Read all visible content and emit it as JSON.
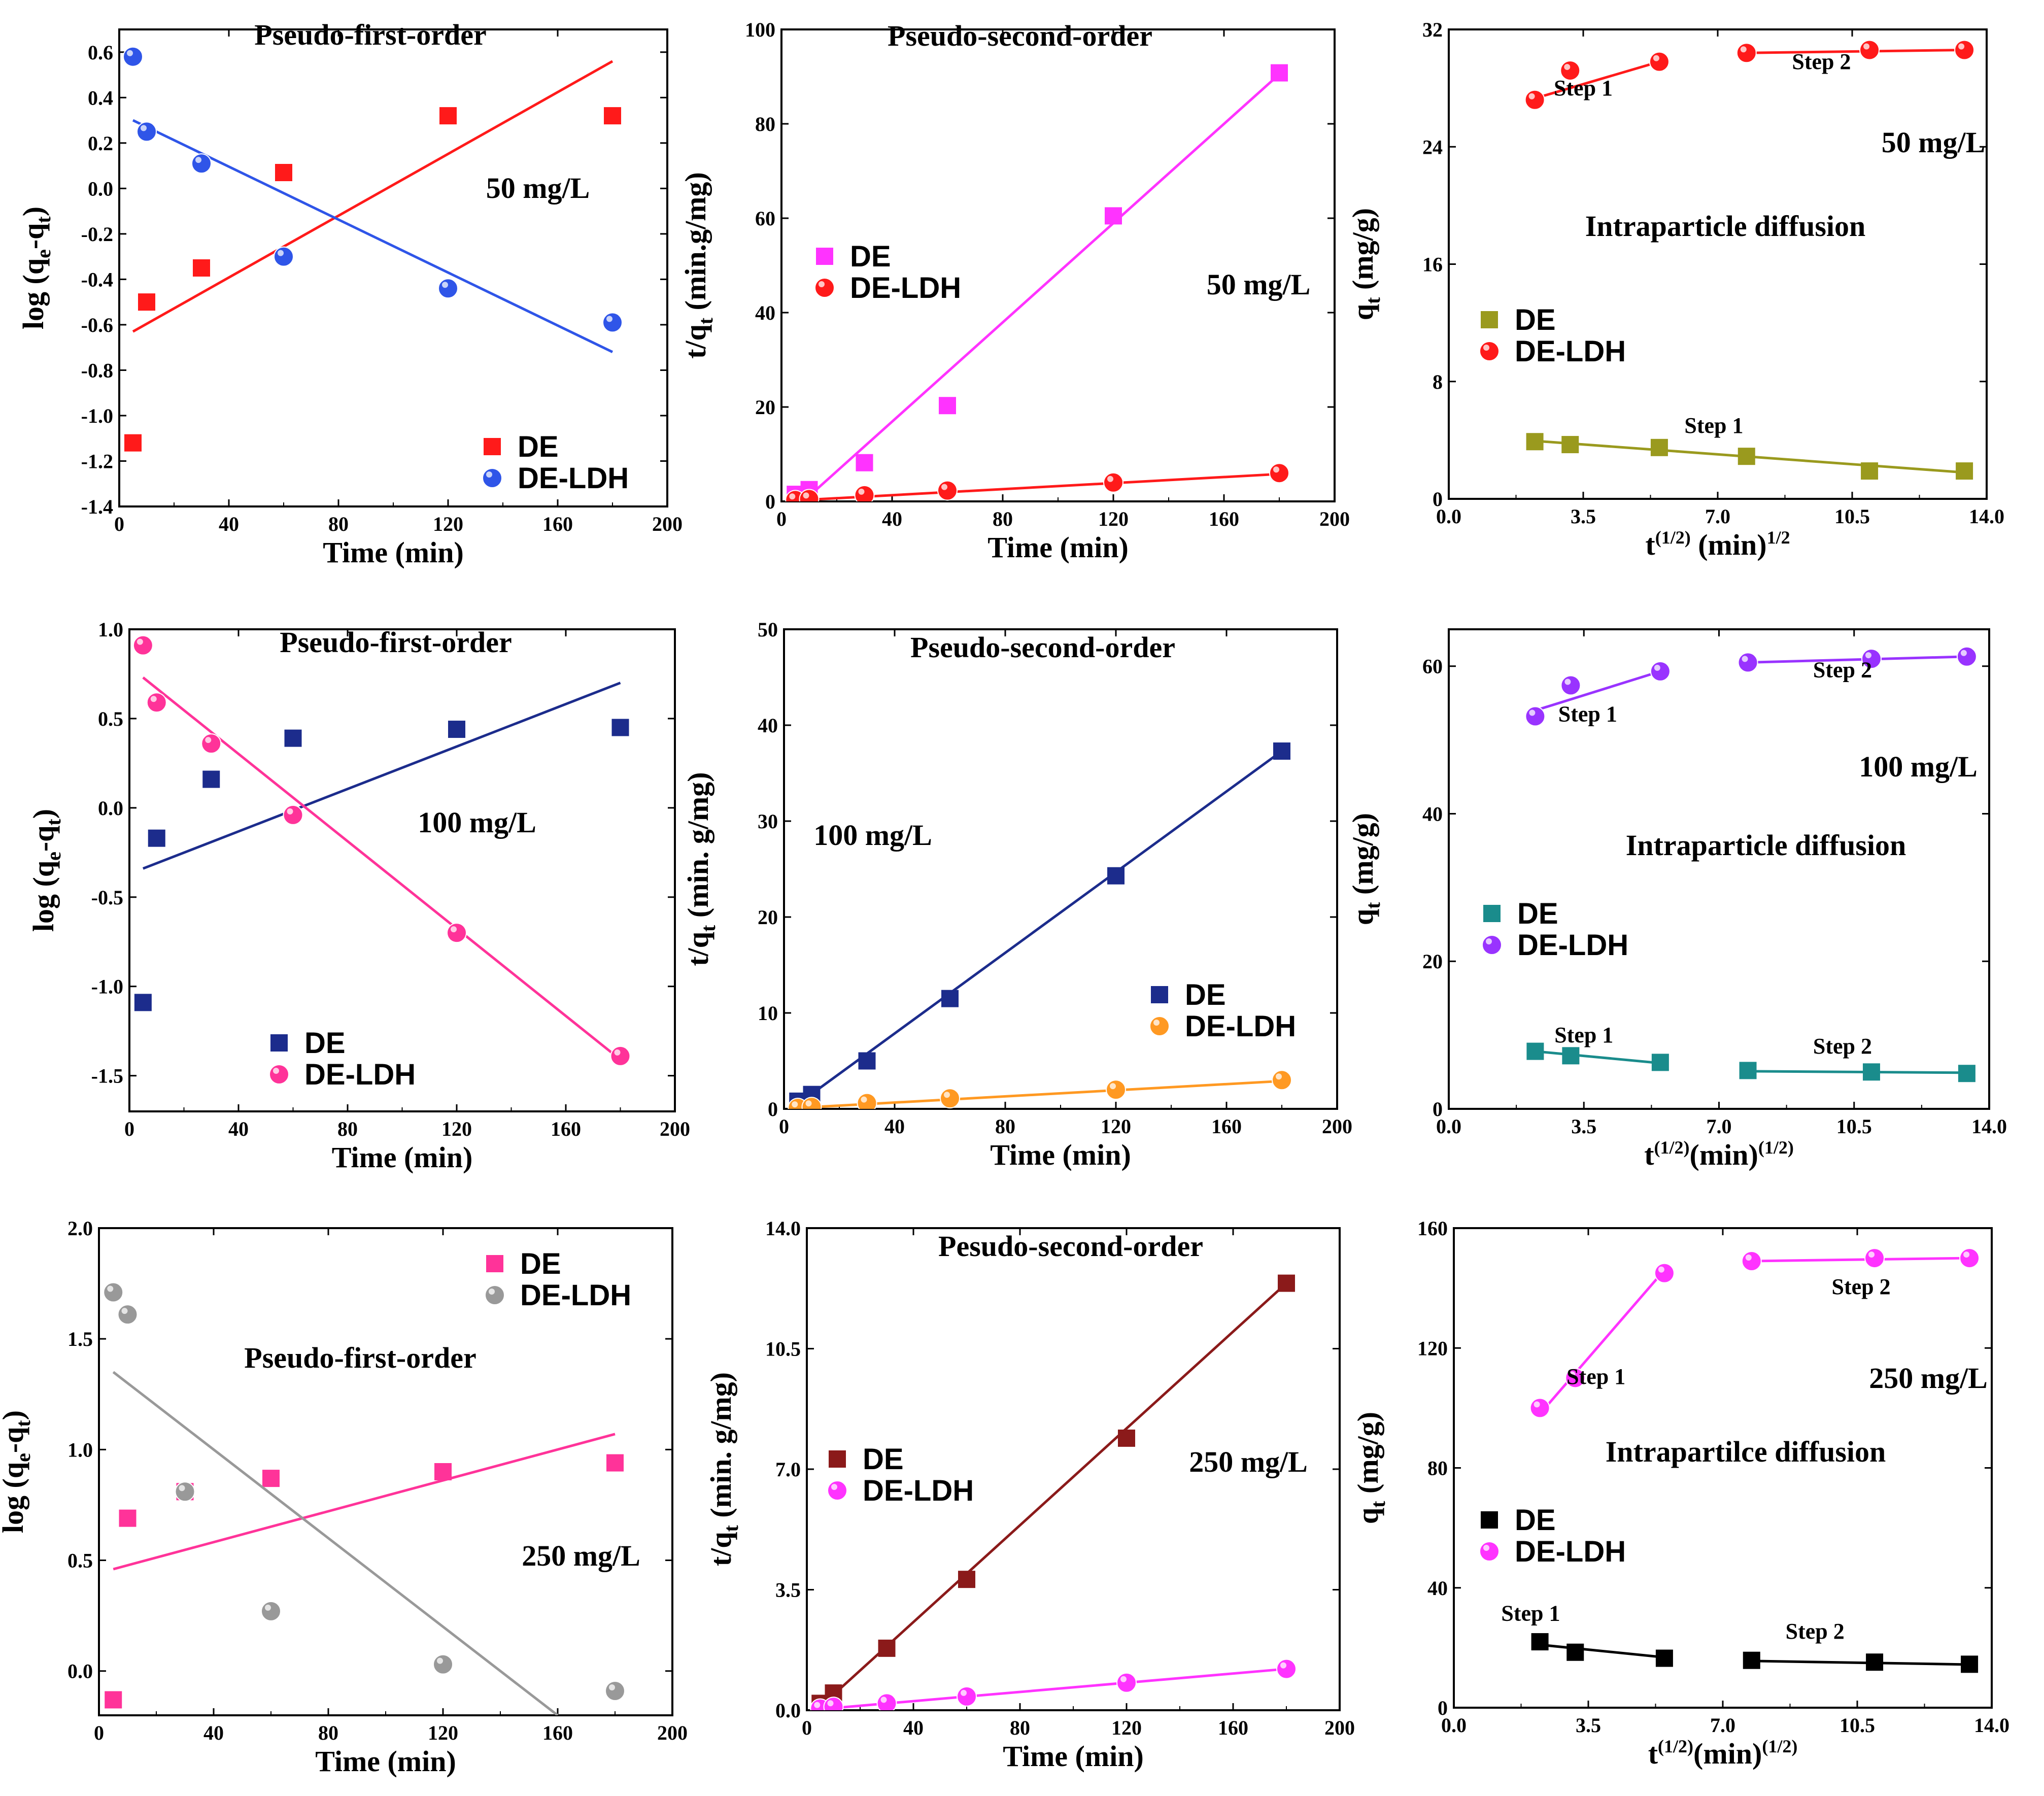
{
  "chart_data": [
    {
      "id": "p1",
      "type": "scatter",
      "title": "Pseudo-first-order",
      "annotation": "50 mg/L",
      "xlabel": "Time (min)",
      "ylabel": "log (q_e-q_t)",
      "xlim": [
        0,
        200
      ],
      "ylim": [
        -1.4,
        0.7
      ],
      "xticks": [
        0,
        40,
        80,
        120,
        160,
        200
      ],
      "xtick_labels": [
        "0",
        "40",
        "80",
        "120",
        "160",
        "200"
      ],
      "yticks": [
        -1.4,
        -1.2,
        -1.0,
        -0.8,
        -0.6,
        -0.4,
        -0.2,
        0.0,
        0.2,
        0.4,
        0.6
      ],
      "ytick_labels": [
        "-1.4",
        "-1.2",
        "-1.0",
        "-0.8",
        "-0.6",
        "-0.4",
        "-0.2",
        "0.0",
        "0.2",
        "0.4",
        "0.6"
      ],
      "series": [
        {
          "name": "DE",
          "marker": "square",
          "color": "#ff1a1a",
          "x": [
            5,
            10,
            30,
            60,
            120,
            180
          ],
          "y": [
            -1.12,
            -0.5,
            -0.35,
            0.07,
            0.32,
            0.32
          ],
          "fit": {
            "x": [
              5,
              180
            ],
            "y": [
              -0.63,
              0.56
            ]
          }
        },
        {
          "name": "DE-LDH",
          "marker": "circle",
          "color": "#2f55e8",
          "x": [
            5,
            10,
            30,
            60,
            120,
            180
          ],
          "y": [
            0.58,
            0.25,
            0.11,
            -0.3,
            -0.44,
            -0.59
          ],
          "fit": {
            "x": [
              5,
              180
            ],
            "y": [
              0.3,
              -0.72
            ]
          }
        }
      ],
      "legend_position": "bottom-right"
    },
    {
      "id": "p2",
      "type": "scatter",
      "title": "Pseudo-second-order",
      "annotation": "50 mg/L",
      "xlabel": "Time (min)",
      "ylabel": "t/q_t (min.g/mg)",
      "xlim": [
        0,
        200
      ],
      "ylim": [
        0,
        100
      ],
      "xticks": [
        0,
        40,
        80,
        120,
        160,
        200
      ],
      "xtick_labels": [
        "0",
        "40",
        "80",
        "120",
        "160",
        "200"
      ],
      "yticks": [
        0,
        20,
        40,
        60,
        80,
        100
      ],
      "ytick_labels": [
        "0",
        "20",
        "40",
        "60",
        "80",
        "100"
      ],
      "series": [
        {
          "name": "DE",
          "marker": "square",
          "color": "#ff33ff",
          "x": [
            5,
            10,
            30,
            60,
            120,
            180
          ],
          "y": [
            1.5,
            2.5,
            8.2,
            20.3,
            60.5,
            90.8
          ],
          "fit": {
            "x": [
              5,
              180
            ],
            "y": [
              -1.5,
              90.5
            ]
          }
        },
        {
          "name": "DE-LDH",
          "marker": "circle",
          "color": "#ff1a1a",
          "x": [
            5,
            10,
            30,
            60,
            120,
            180
          ],
          "y": [
            0.3,
            0.5,
            1.3,
            2.3,
            4,
            6
          ],
          "fit": {
            "x": [
              5,
              180
            ],
            "y": [
              0.2,
              5.8
            ]
          }
        }
      ],
      "legend_position": "middle-left"
    },
    {
      "id": "p3",
      "type": "scatter",
      "title": "Intraparticle diffusion",
      "annotation": "50 mg/L",
      "xlabel": "t^(1/2) (min)^1/2",
      "ylabel": "q_t (mg/g)",
      "xlim": [
        0,
        14
      ],
      "ylim": [
        0,
        32
      ],
      "xticks": [
        0,
        3.5,
        7,
        10.5,
        14
      ],
      "xtick_labels": [
        "0.0",
        "3.5",
        "7.0",
        "10.5",
        "14.0"
      ],
      "yticks": [
        0,
        8,
        16,
        24,
        32
      ],
      "ytick_labels": [
        "0",
        "8",
        "16",
        "24",
        "32"
      ],
      "step_labels": [
        {
          "text": "Step 1",
          "x": 3.5,
          "y": 27.5
        },
        {
          "text": "Step 2",
          "x": 9.7,
          "y": 29.3
        },
        {
          "text": "Step 1",
          "x": 6.9,
          "y": 4.5
        }
      ],
      "series": [
        {
          "name": "DE",
          "marker": "square",
          "color": "#9a9a1e",
          "x": [
            2.24,
            3.16,
            5.48,
            7.75,
            10.95,
            13.42
          ],
          "y": [
            3.9,
            3.7,
            3.5,
            2.9,
            1.9,
            1.9
          ],
          "fit": {
            "x": [
              2.24,
              13.42
            ],
            "y": [
              3.95,
              1.8
            ]
          }
        },
        {
          "name": "DE-LDH",
          "marker": "circle",
          "color": "#ff1a1a",
          "x": [
            2.24,
            3.16,
            5.48,
            7.75,
            10.95,
            13.42
          ],
          "y": [
            27.2,
            29.2,
            29.8,
            30.4,
            30.6,
            30.6
          ],
          "fit_segments": [
            {
              "x": [
                2.24,
                5.48
              ],
              "y": [
                27.3,
                29.8
              ]
            },
            {
              "x": [
                7.75,
                13.42
              ],
              "y": [
                30.4,
                30.6
              ]
            }
          ]
        }
      ],
      "legend_position": "middle-left"
    },
    {
      "id": "p4",
      "type": "scatter",
      "title": "Pseudo-first-order",
      "annotation": "100 mg/L",
      "xlabel": "Time (min)",
      "ylabel": "log (q_e-q_t)",
      "xlim": [
        0,
        200
      ],
      "ylim": [
        -1.7,
        1.0
      ],
      "xticks": [
        0,
        40,
        80,
        120,
        160,
        200
      ],
      "xtick_labels": [
        "0",
        "40",
        "80",
        "120",
        "160",
        "200"
      ],
      "yticks": [
        -1.5,
        -1.0,
        -0.5,
        0.0,
        0.5,
        1.0
      ],
      "ytick_labels": [
        "-1.5",
        "-1.0",
        "-0.5",
        "0.0",
        "0.5",
        "1.0"
      ],
      "series": [
        {
          "name": "DE",
          "marker": "square",
          "color": "#1c2c8c",
          "x": [
            5,
            10,
            30,
            60,
            120,
            180
          ],
          "y": [
            -1.09,
            -0.17,
            0.16,
            0.39,
            0.44,
            0.45
          ],
          "fit": {
            "x": [
              5,
              180
            ],
            "y": [
              -0.34,
              0.7
            ]
          }
        },
        {
          "name": "DE-LDH",
          "marker": "circle",
          "color": "#ff3399",
          "x": [
            5,
            10,
            30,
            60,
            120,
            180
          ],
          "y": [
            0.91,
            0.59,
            0.36,
            -0.04,
            -0.7,
            -1.39
          ],
          "fit": {
            "x": [
              5,
              180
            ],
            "y": [
              0.73,
              -1.41
            ]
          }
        }
      ],
      "legend_position": "bottom-left"
    },
    {
      "id": "p5",
      "type": "scatter",
      "title": "Pseudo-second-order",
      "annotation": "100 mg/L",
      "xlabel": "Time (min)",
      "ylabel": "t/q_t (min. g/mg)",
      "xlim": [
        0,
        200
      ],
      "ylim": [
        0,
        50
      ],
      "xticks": [
        0,
        40,
        80,
        120,
        160,
        200
      ],
      "xtick_labels": [
        "0",
        "40",
        "80",
        "120",
        "160",
        "200"
      ],
      "yticks": [
        0,
        10,
        20,
        30,
        40,
        50
      ],
      "ytick_labels": [
        "0",
        "10",
        "20",
        "30",
        "40",
        "50"
      ],
      "series": [
        {
          "name": "DE",
          "marker": "square",
          "color": "#1c2c8c",
          "x": [
            5,
            10,
            30,
            60,
            120,
            180
          ],
          "y": [
            0.8,
            1.5,
            5,
            11.5,
            24.3,
            37.3
          ],
          "fit": {
            "x": [
              5,
              180
            ],
            "y": [
              0.5,
              37.3
            ]
          }
        },
        {
          "name": "DE-LDH",
          "marker": "circle",
          "color": "#ff9922",
          "x": [
            5,
            10,
            30,
            60,
            120,
            180
          ],
          "y": [
            0.1,
            0.2,
            0.6,
            1.1,
            2,
            3
          ],
          "fit": {
            "x": [
              5,
              180
            ],
            "y": [
              0.1,
              2.9
            ]
          }
        }
      ],
      "legend_position": "bottom-right"
    },
    {
      "id": "p6",
      "type": "scatter",
      "title": "Intraparticle diffusion",
      "annotation": "100 mg/L",
      "xlabel": "t^(1/2)(min)^(1/2)",
      "ylabel": "q_t (mg/g)",
      "xlim": [
        0,
        14
      ],
      "ylim": [
        0,
        65
      ],
      "xticks": [
        0,
        3.5,
        7,
        10.5,
        14
      ],
      "xtick_labels": [
        "0.0",
        "3.5",
        "7.0",
        "10.5",
        "14.0"
      ],
      "yticks": [
        0,
        20,
        40,
        60
      ],
      "ytick_labels": [
        "0",
        "20",
        "40",
        "60"
      ],
      "step_labels": [
        {
          "text": "Step 1",
          "x": 3.6,
          "y": 52.5
        },
        {
          "text": "Step 2",
          "x": 10.2,
          "y": 58.5
        },
        {
          "text": "Step 1",
          "x": 3.5,
          "y": 9.0
        },
        {
          "text": "Step 2",
          "x": 10.2,
          "y": 7.5
        }
      ],
      "series": [
        {
          "name": "DE",
          "marker": "square",
          "color": "#1a8c8c",
          "x": [
            2.24,
            3.16,
            5.48,
            7.75,
            10.95,
            13.42
          ],
          "y": [
            7.8,
            7.2,
            6.3,
            5.2,
            5,
            4.8
          ],
          "fit_segments": [
            {
              "x": [
                2.24,
                5.48
              ],
              "y": [
                7.8,
                6.2
              ]
            },
            {
              "x": [
                7.75,
                13.42
              ],
              "y": [
                5.1,
                4.9
              ]
            }
          ]
        },
        {
          "name": "DE-LDH",
          "marker": "circle",
          "color": "#9933ff",
          "x": [
            2.24,
            3.16,
            5.48,
            7.75,
            10.95,
            13.42
          ],
          "y": [
            53.2,
            57.4,
            59.3,
            60.5,
            61,
            61.3
          ],
          "fit_segments": [
            {
              "x": [
                2.24,
                5.48
              ],
              "y": [
                54,
                59.3
              ]
            },
            {
              "x": [
                7.75,
                13.42
              ],
              "y": [
                60.5,
                61.3
              ]
            }
          ]
        }
      ],
      "legend_position": "bottom-left"
    },
    {
      "id": "p7",
      "type": "scatter",
      "title": "Pseudo-first-order",
      "annotation": "250 mg/L",
      "xlabel": "Time (min)",
      "ylabel": "log (q_e-q_t)",
      "xlim": [
        0,
        200
      ],
      "ylim": [
        -0.2,
        2.0
      ],
      "xticks": [
        0,
        40,
        80,
        120,
        160,
        200
      ],
      "xtick_labels": [
        "0",
        "40",
        "80",
        "120",
        "160",
        "200"
      ],
      "yticks": [
        0,
        0.5,
        1.0,
        1.5,
        2.0
      ],
      "ytick_labels": [
        "0.0",
        "0.5",
        "1.0",
        "1.5",
        "2.0"
      ],
      "series": [
        {
          "name": "DE",
          "marker": "square",
          "color": "#ff3399",
          "x": [
            5,
            10,
            30,
            60,
            120,
            180
          ],
          "y": [
            -0.13,
            0.69,
            0.81,
            0.87,
            0.9,
            0.94
          ],
          "fit": {
            "x": [
              5,
              180
            ],
            "y": [
              0.46,
              1.07
            ]
          }
        },
        {
          "name": "DE-LDH",
          "marker": "circle",
          "color": "#999999",
          "x": [
            5,
            10,
            30,
            60,
            120,
            180
          ],
          "y": [
            1.71,
            1.61,
            0.81,
            0.27,
            0.03,
            -0.09
          ],
          "fit": {
            "x": [
              5,
              160
            ],
            "y": [
              1.35,
              -0.2
            ]
          }
        }
      ],
      "legend_position": "top-right"
    },
    {
      "id": "p8",
      "type": "scatter",
      "title": "Pesudo-second-order",
      "annotation": "250 mg/L",
      "xlabel": "Time (min)",
      "ylabel": "t/q_t (min. g/mg)",
      "xlim": [
        0,
        200
      ],
      "ylim": [
        0,
        14
      ],
      "xticks": [
        0,
        40,
        80,
        120,
        160,
        200
      ],
      "xtick_labels": [
        "0",
        "40",
        "80",
        "120",
        "160",
        "200"
      ],
      "yticks": [
        0,
        3.5,
        7,
        10.5,
        14
      ],
      "ytick_labels": [
        "0.0",
        "3.5",
        "7.0",
        "10.5",
        "14.0"
      ],
      "series": [
        {
          "name": "DE",
          "marker": "square",
          "color": "#8b1a1a",
          "x": [
            5,
            10,
            30,
            60,
            120,
            180
          ],
          "y": [
            0.2,
            0.5,
            1.8,
            3.8,
            7.9,
            12.4
          ],
          "fit": {
            "x": [
              5,
              180
            ],
            "y": [
              0.1,
              12.4
            ]
          }
        },
        {
          "name": "DE-LDH",
          "marker": "circle",
          "color": "#ff33ff",
          "x": [
            5,
            10,
            30,
            60,
            120,
            180
          ],
          "y": [
            0.05,
            0.1,
            0.2,
            0.4,
            0.8,
            1.2
          ],
          "fit": {
            "x": [
              5,
              180
            ],
            "y": [
              0.03,
              1.2
            ]
          }
        }
      ],
      "legend_position": "middle-left"
    },
    {
      "id": "p9",
      "type": "scatter",
      "title": "Intrapartilce diffusion",
      "annotation": "250 mg/L",
      "xlabel": "t^(1/2)(min)^(1/2)",
      "ylabel": "q_t (mg/g)",
      "xlim": [
        0,
        14
      ],
      "ylim": [
        0,
        160
      ],
      "xticks": [
        0,
        3.5,
        7,
        10.5,
        14
      ],
      "xtick_labels": [
        "0.0",
        "3.5",
        "7.0",
        "10.5",
        "14.0"
      ],
      "yticks": [
        0,
        40,
        80,
        120,
        160
      ],
      "ytick_labels": [
        "0",
        "40",
        "80",
        "120",
        "160"
      ],
      "step_labels": [
        {
          "text": "Step 1",
          "x": 3.7,
          "y": 108
        },
        {
          "text": "Step 2",
          "x": 10.6,
          "y": 138
        },
        {
          "text": "Step 1",
          "x": 2.0,
          "y": 29
        },
        {
          "text": "Step 2",
          "x": 9.4,
          "y": 23
        }
      ],
      "series": [
        {
          "name": "DE",
          "marker": "square",
          "color": "#000000",
          "x": [
            2.24,
            3.16,
            5.48,
            7.75,
            10.95,
            13.42
          ],
          "y": [
            22,
            18.5,
            16.5,
            15.8,
            15.2,
            14.5
          ],
          "fit_segments": [
            {
              "x": [
                2.24,
                5.48
              ],
              "y": [
                21,
                16.8
              ]
            },
            {
              "x": [
                7.75,
                13.42
              ],
              "y": [
                15.6,
                14.4
              ]
            }
          ]
        },
        {
          "name": "DE-LDH",
          "marker": "circle",
          "color": "#ff33ff",
          "x": [
            2.24,
            3.16,
            5.48,
            7.75,
            10.95,
            13.42
          ],
          "y": [
            100,
            110,
            145,
            149,
            150,
            150
          ],
          "fit_segments": [
            {
              "x": [
                2.24,
                5.48
              ],
              "y": [
                98,
                146
              ]
            },
            {
              "x": [
                7.75,
                13.42
              ],
              "y": [
                149,
                150
              ]
            }
          ]
        }
      ],
      "legend_position": "middle-left"
    }
  ]
}
